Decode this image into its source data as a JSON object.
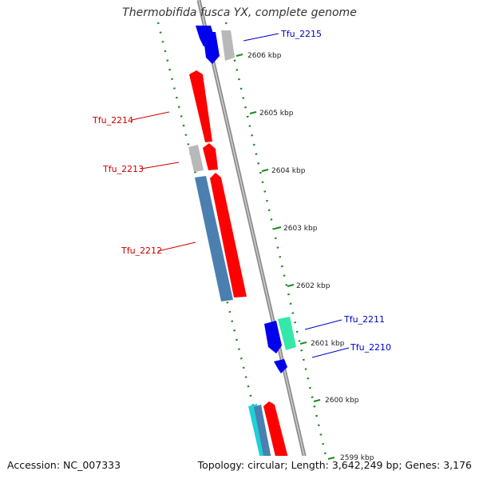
{
  "title": "Thermobifida fusca YX, complete genome",
  "accession": "Accession: NC_007333",
  "summary": "Topology: circular; Length: 3,642,249 bp; Genes: 3,176",
  "scale_labels": [
    "2606 kbp",
    "2605 kbp",
    "2604 kbp",
    "2603 kbp",
    "2602 kbp",
    "2601 kbp",
    "2600 kbp",
    "2599 kbp"
  ],
  "gene_labels": [
    {
      "name": "Tfu_2215",
      "color": "#0000cc"
    },
    {
      "name": "Tfu_2214",
      "color": "#cc0000"
    },
    {
      "name": "Tfu_2213",
      "color": "#cc0000"
    },
    {
      "name": "Tfu_2212",
      "color": "#cc0000"
    },
    {
      "name": "Tfu_2211",
      "color": "#0000cc"
    },
    {
      "name": "Tfu_2210",
      "color": "#0000cc"
    }
  ],
  "colors": {
    "forward_gene": "#ff0000",
    "reverse_gene": "#0000ee",
    "blast_hit": "#4a7fb0",
    "other_feature": "#b8b8b8",
    "teal_feature": "#33e8a8",
    "cyan_feature": "#20d0d8",
    "backbone": "#8c8c8c",
    "tick": "#1a8a1a"
  }
}
